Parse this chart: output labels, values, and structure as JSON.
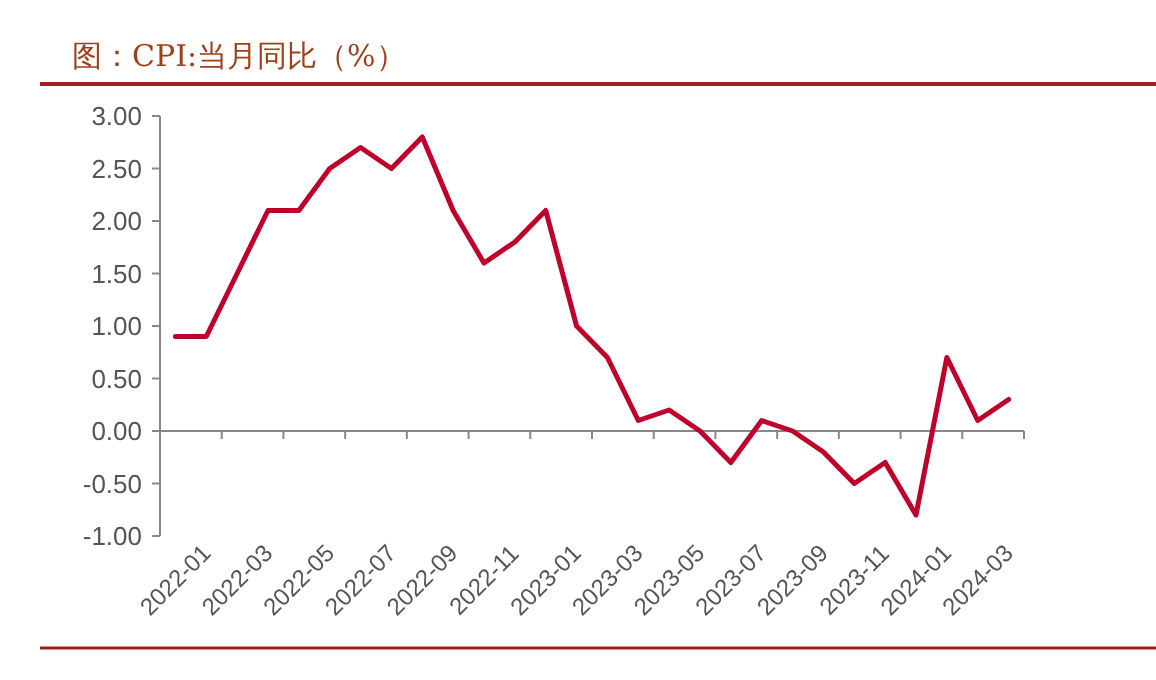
{
  "chart_data": {
    "type": "line",
    "title": "图：CPI:当月同比（%）",
    "categories": [
      "2022-01",
      null,
      "2022-03",
      null,
      "2022-05",
      null,
      "2022-07",
      null,
      "2022-09",
      null,
      "2022-11",
      null,
      "2023-01",
      null,
      "2023-03",
      null,
      "2023-05",
      null,
      "2023-07",
      null,
      "2023-09",
      null,
      "2023-11",
      null,
      "2024-01",
      null,
      "2024-03",
      null
    ],
    "series": [
      {
        "color": "#c0002a",
        "values": [
          0.9,
          0.9,
          1.5,
          2.1,
          2.1,
          2.5,
          2.7,
          2.5,
          2.8,
          2.1,
          1.6,
          1.8,
          2.1,
          1.0,
          0.7,
          0.1,
          0.2,
          0.0,
          -0.3,
          0.1,
          0.0,
          -0.2,
          -0.5,
          -0.3,
          -0.8,
          0.7,
          0.1,
          0.3
        ]
      }
    ],
    "ylim": [
      -1,
      3
    ],
    "yticks": [
      {
        "value": -1,
        "label": "-1.00"
      },
      {
        "value": -0.5,
        "label": "-0.50"
      },
      {
        "value": 0,
        "label": "0.00"
      },
      {
        "value": 0.5,
        "label": "0.50"
      },
      {
        "value": 1,
        "label": "1.00"
      },
      {
        "value": 1.5,
        "label": "1.50"
      },
      {
        "value": 2,
        "label": "2.00"
      },
      {
        "value": 2.5,
        "label": "2.50"
      },
      {
        "value": 3,
        "label": "3.00"
      }
    ],
    "marker": "none",
    "line_style": "solid"
  }
}
